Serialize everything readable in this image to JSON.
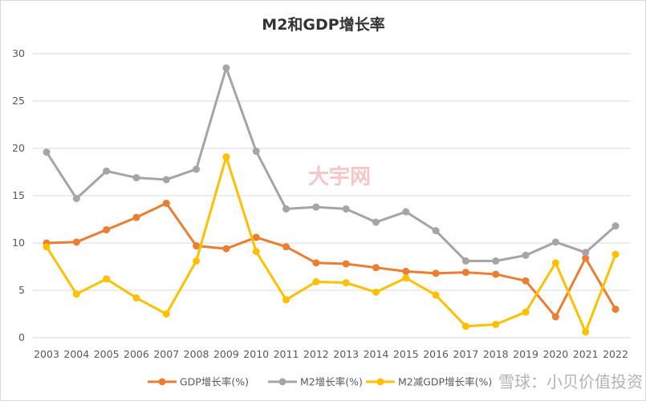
{
  "chart_data": {
    "type": "line",
    "title": "M2和GDP增长率",
    "xlabel": "",
    "ylabel": "",
    "categories": [
      "2003",
      "2004",
      "2005",
      "2006",
      "2007",
      "2008",
      "2009",
      "2010",
      "2011",
      "2012",
      "2013",
      "2014",
      "2015",
      "2016",
      "2017",
      "2018",
      "2019",
      "2020",
      "2021",
      "2022"
    ],
    "ylim": [
      0,
      30
    ],
    "yticks": [
      0,
      5,
      10,
      15,
      20,
      25,
      30
    ],
    "grid": true,
    "legend_position": "bottom",
    "series": [
      {
        "name": "GDP增长率(%)",
        "color": "#ED7D31",
        "values": [
          10.0,
          10.1,
          11.4,
          12.7,
          14.2,
          9.7,
          9.4,
          10.6,
          9.6,
          7.9,
          7.8,
          7.4,
          7.0,
          6.8,
          6.9,
          6.7,
          6.0,
          2.2,
          8.4,
          3.0
        ]
      },
      {
        "name": "M2增长率(%)",
        "color": "#A5A5A5",
        "values": [
          19.6,
          14.7,
          17.6,
          16.9,
          16.7,
          17.8,
          28.5,
          19.7,
          13.6,
          13.8,
          13.6,
          12.2,
          13.3,
          11.3,
          8.1,
          8.1,
          8.7,
          10.1,
          9.0,
          11.8
        ]
      },
      {
        "name": "M2减GDP增长率(%)",
        "color": "#FFC000",
        "values": [
          9.6,
          4.6,
          6.2,
          4.2,
          2.5,
          8.1,
          19.1,
          9.1,
          4.0,
          5.9,
          5.8,
          4.8,
          6.3,
          4.5,
          1.2,
          1.4,
          2.7,
          7.9,
          0.6,
          8.8
        ]
      }
    ]
  },
  "watermarks": {
    "center": "大宇网",
    "bottom": "雪球：小贝价值投资"
  }
}
